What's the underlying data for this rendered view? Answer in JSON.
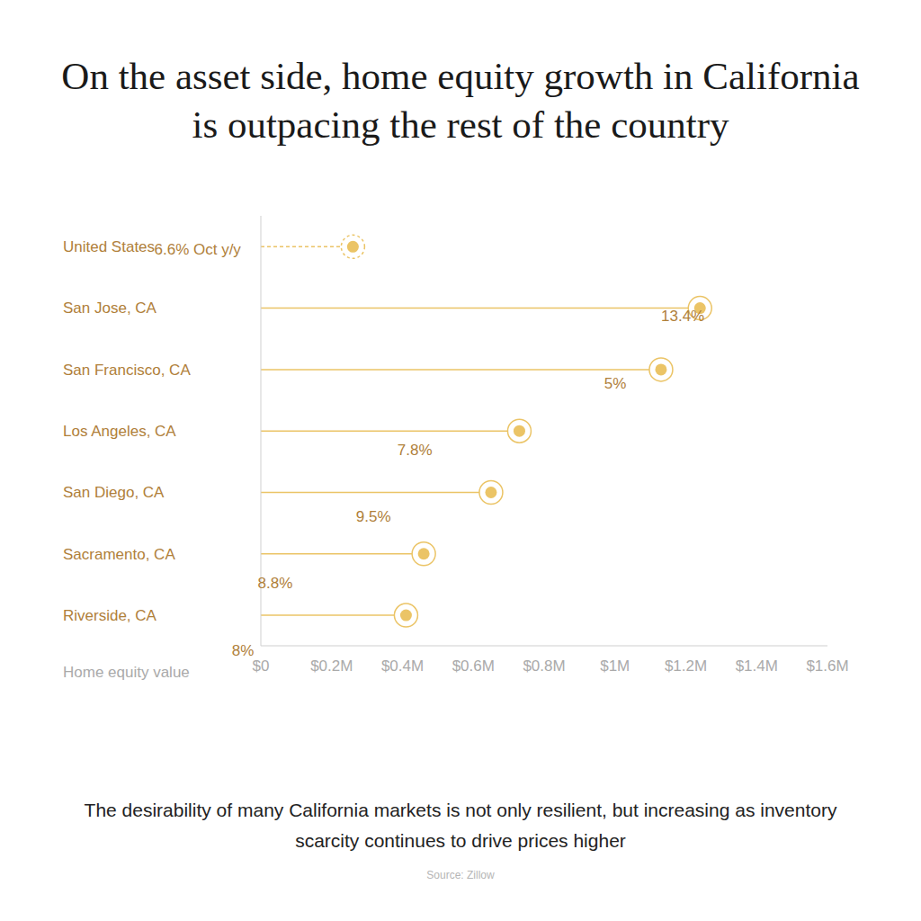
{
  "chart_data": {
    "type": "lollipop",
    "title": "On the asset side, home equity growth in California is outpacing the rest of the country",
    "subtitle": "The desirability of many California markets is not only resilient, but increasing as inventory scarcity continues to drive prices higher",
    "source": "Source: Zillow",
    "orientation": "horizontal",
    "grid": false,
    "color": "#ebc466",
    "categories": [
      "United States",
      "San Jose, CA",
      "San Francisco, CA",
      "Los Angeles, CA",
      "San Diego, CA",
      "Sacramento, CA",
      "Riverside, CA"
    ],
    "series": [
      {
        "values": [
          0.26,
          null,
          null,
          null,
          null,
          null,
          null
        ],
        "line_style": "dashed"
      },
      {
        "values": [
          null,
          1.24,
          1.13,
          0.73,
          0.65,
          0.46,
          0.41
        ],
        "line_style": "solid"
      }
    ],
    "annotations": [
      "6.6% Oct y/y",
      "13.4%",
      "5%",
      "7.8%",
      "9.5%",
      "8.8%",
      "8%"
    ],
    "xlabel": "Home equity value",
    "xlim": [
      0,
      1.6
    ],
    "xticks": [
      {
        "value": 0,
        "label": "$0"
      },
      {
        "value": 0.2,
        "label": "$0.2M"
      },
      {
        "value": 0.4,
        "label": "$0.4M"
      },
      {
        "value": 0.6,
        "label": "$0.6M"
      },
      {
        "value": 0.8,
        "label": "$0.8M"
      },
      {
        "value": 1,
        "label": "$1M"
      },
      {
        "value": 1.2,
        "label": "$1.2M"
      },
      {
        "value": 1.4,
        "label": "$1.4M"
      },
      {
        "value": 1.6,
        "label": "$1.6M"
      }
    ]
  }
}
